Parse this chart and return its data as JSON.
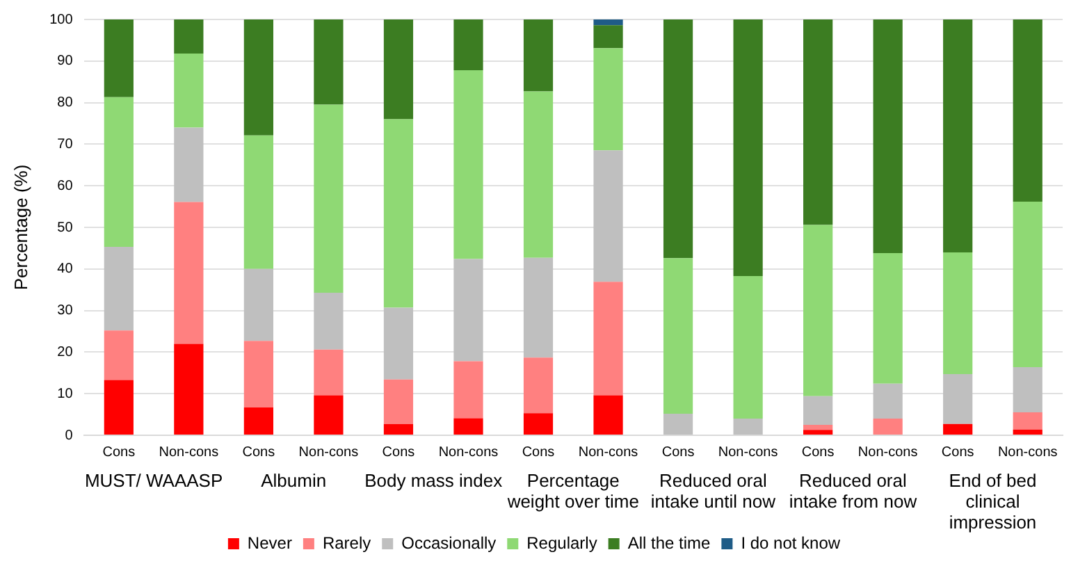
{
  "chart_data": {
    "type": "bar",
    "stacked": true,
    "ylabel": "Percentage (%)",
    "categories": [
      "Cons",
      "Non-cons",
      "Cons",
      "Non-cons",
      "Cons",
      "Non-cons",
      "Cons",
      "Non-cons",
      "Cons",
      "Non-cons",
      "Cons",
      "Non-cons",
      "Cons",
      "Non-cons"
    ],
    "annotations": [
      "MUST/ WAAASP",
      "Albumin",
      "Body mass index",
      "Percentage weight over time",
      "Reduced oral intake until now",
      "Reduced oral intake from now",
      "End of bed clinical impression"
    ],
    "ylim": [
      0,
      100
    ],
    "yticks": [
      0,
      10,
      20,
      30,
      40,
      50,
      60,
      70,
      80,
      90,
      100
    ],
    "grid": "y",
    "legend": "bottom",
    "series": [
      {
        "name": "Never",
        "color": "#ff0000",
        "values": [
          13.3,
          22.0,
          6.7,
          9.6,
          2.7,
          4.1,
          5.3,
          9.6,
          0,
          0,
          1.3,
          0,
          2.7,
          1.4
        ]
      },
      {
        "name": "Rarely",
        "color": "#ff8080",
        "values": [
          11.9,
          34.1,
          16.0,
          11.0,
          10.7,
          13.7,
          13.4,
          27.3,
          0,
          0,
          1.2,
          4.0,
          0,
          4.1
        ]
      },
      {
        "name": "Occasionally",
        "color": "#bfbfbf",
        "values": [
          20.1,
          17.9,
          17.3,
          13.7,
          17.3,
          24.6,
          24.0,
          31.6,
          5.2,
          4.0,
          6.9,
          8.4,
          12.0,
          10.9
        ]
      },
      {
        "name": "Regularly",
        "color": "#8fd974",
        "values": [
          36.0,
          17.8,
          32.1,
          45.2,
          45.3,
          45.4,
          40.0,
          24.6,
          37.4,
          34.3,
          41.2,
          31.4,
          29.3,
          39.8
        ]
      },
      {
        "name": "All the time",
        "color": "#3c7d22",
        "values": [
          18.7,
          8.2,
          27.9,
          20.5,
          24.0,
          12.2,
          17.3,
          5.5,
          57.4,
          61.7,
          49.4,
          56.2,
          56.0,
          43.8
        ]
      },
      {
        "name": "I do not know",
        "color": "#1f5c87",
        "values": [
          0,
          0,
          0,
          0,
          0,
          0,
          0,
          1.4,
          0,
          0,
          0,
          0,
          0,
          0
        ]
      }
    ]
  }
}
